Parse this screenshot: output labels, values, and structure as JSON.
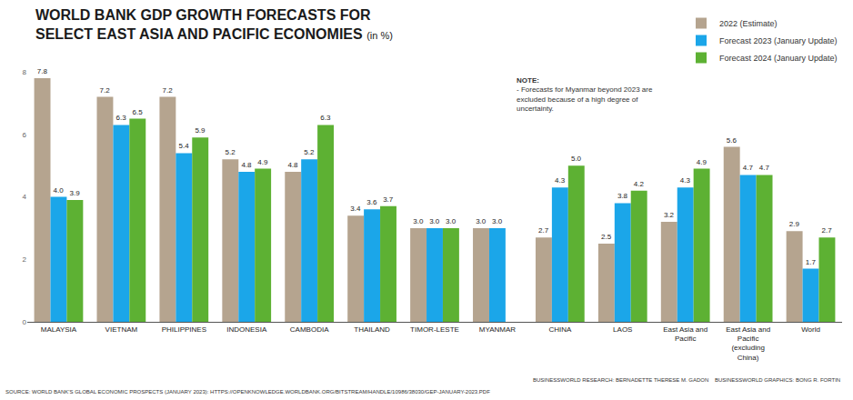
{
  "chart_data": {
    "type": "bar",
    "title": "WORLD BANK GDP GROWTH FORECASTS FOR SELECT EAST ASIA AND PACIFIC ECONOMIES",
    "subtitle": "(in %)",
    "categories": [
      "MALAYSIA",
      "VIETNAM",
      "PHILIPPINES",
      "INDONESIA",
      "CAMBODIA",
      "THAILAND",
      "TIMOR-LESTE",
      "MYANMAR",
      "CHINA",
      "LAOS",
      "East Asia and Pacific",
      "East Asia and Pacific (excluding China)",
      "World"
    ],
    "series": [
      {
        "name": "2022 (Estimate)",
        "color": "#b5a48f",
        "values": [
          7.8,
          7.2,
          7.2,
          5.2,
          4.8,
          3.4,
          3.0,
          3.0,
          2.7,
          2.5,
          3.2,
          5.6,
          2.9
        ],
        "value_labels": [
          "7.8",
          "7.2",
          "7.2",
          "5.2",
          "4.8",
          "3.4",
          "3.0",
          "3.0",
          "2.7",
          "2.5",
          "3.2",
          "5.6",
          "2.9"
        ]
      },
      {
        "name": "Forecast 2023 (January Update)",
        "color": "#1ba6e9",
        "values": [
          4.0,
          6.3,
          5.4,
          4.8,
          5.2,
          3.6,
          3.0,
          3.0,
          4.3,
          3.8,
          4.3,
          4.7,
          1.7
        ],
        "value_labels": [
          "4.0",
          "6.3",
          "5.4",
          "4.8",
          "5.2",
          "3.6",
          "3.0",
          "3.0",
          "4.3",
          "3.8",
          "4.3",
          "4.7",
          "1.7"
        ]
      },
      {
        "name": "Forecast 2024 (January Update)",
        "color": "#5db133",
        "values": [
          3.9,
          6.5,
          5.9,
          4.9,
          6.3,
          3.7,
          3.0,
          null,
          5.0,
          4.2,
          4.9,
          4.7,
          2.7
        ],
        "value_labels": [
          "3.9",
          "6.5",
          "5.9",
          "4.9",
          "6.3",
          "3.7",
          "3.0",
          null,
          "5.0",
          "4.2",
          "4.9",
          "4.7",
          "2.7"
        ]
      }
    ],
    "ylim": [
      0,
      8
    ],
    "yticks": [
      0,
      2,
      4,
      6,
      8
    ],
    "grid": false,
    "legend": "top right",
    "data_labels": true,
    "note": [
      "NOTE:",
      "- Forecasts for Myanmar beyond 2023 are excluded because of a high degree of uncertainty."
    ],
    "source": "SOURCE: WORLD BANK'S GLOBAL ECONOMIC PROSPECTS (JANUARY 2023): HTTPS://OPENKNOWLEDGE.WORLDBANK.ORG/BITSTREAM/HANDLE/10986/38030/GEP-JANUARY-2023.PDF",
    "credits": [
      "BUSINESSWORLD RESEARCH: BERNADETTE THERESE M. GADON",
      "BUSINESSWORLD GRAPHICS: BONG R. FORTIN"
    ]
  }
}
